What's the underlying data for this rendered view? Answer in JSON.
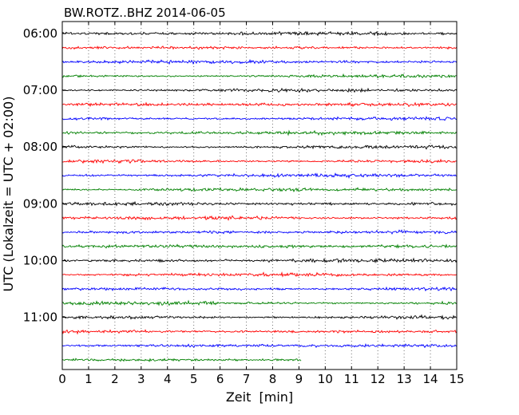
{
  "figure": {
    "title": "BW.ROTZ..BHZ 2014-06-05",
    "xlabel": "Zeit  [min]",
    "ylabel": "UTC (Lokalzeit = UTC + 02:00)"
  },
  "chart_data": {
    "type": "line",
    "subtype": "helicorder-dayplot",
    "title": "BW.ROTZ..BHZ 2014-06-05",
    "xlabel": "Zeit  [min]",
    "ylabel": "UTC (Lokalzeit = UTC + 02:00)",
    "xlim": [
      0,
      15
    ],
    "x_ticks": [
      0,
      1,
      2,
      3,
      4,
      5,
      6,
      7,
      8,
      9,
      10,
      11,
      12,
      13,
      14,
      15
    ],
    "y_ticks": [
      "06:00",
      "07:00",
      "08:00",
      "09:00",
      "10:00",
      "11:00"
    ],
    "grid": "vertical-dotted-every-minute",
    "legend": "none",
    "minutes_per_trace": 15,
    "traces_per_hour": 4,
    "color_cycle": [
      "#000000",
      "#ff0000",
      "#0000ff",
      "#008000"
    ],
    "traces": [
      {
        "start": "06:00",
        "color": "#000000",
        "start_min": 0,
        "end_min": 15
      },
      {
        "start": "06:15",
        "color": "#ff0000",
        "start_min": 0,
        "end_min": 15
      },
      {
        "start": "06:30",
        "color": "#0000ff",
        "start_min": 0,
        "end_min": 15
      },
      {
        "start": "06:45",
        "color": "#008000",
        "start_min": 0,
        "end_min": 15
      },
      {
        "start": "07:00",
        "color": "#000000",
        "start_min": 0,
        "end_min": 15
      },
      {
        "start": "07:15",
        "color": "#ff0000",
        "start_min": 0,
        "end_min": 15
      },
      {
        "start": "07:30",
        "color": "#0000ff",
        "start_min": 0,
        "end_min": 15
      },
      {
        "start": "07:45",
        "color": "#008000",
        "start_min": 0,
        "end_min": 15
      },
      {
        "start": "08:00",
        "color": "#000000",
        "start_min": 0,
        "end_min": 15
      },
      {
        "start": "08:15",
        "color": "#ff0000",
        "start_min": 0,
        "end_min": 15
      },
      {
        "start": "08:30",
        "color": "#0000ff",
        "start_min": 0,
        "end_min": 15
      },
      {
        "start": "08:45",
        "color": "#008000",
        "start_min": 0,
        "end_min": 15
      },
      {
        "start": "09:00",
        "color": "#000000",
        "start_min": 0,
        "end_min": 15
      },
      {
        "start": "09:15",
        "color": "#ff0000",
        "start_min": 0,
        "end_min": 15
      },
      {
        "start": "09:30",
        "color": "#0000ff",
        "start_min": 0,
        "end_min": 15
      },
      {
        "start": "09:45",
        "color": "#008000",
        "start_min": 0,
        "end_min": 15
      },
      {
        "start": "10:00",
        "color": "#000000",
        "start_min": 0,
        "end_min": 15
      },
      {
        "start": "10:15",
        "color": "#ff0000",
        "start_min": 0,
        "end_min": 15
      },
      {
        "start": "10:30",
        "color": "#0000ff",
        "start_min": 0,
        "end_min": 15
      },
      {
        "start": "10:45",
        "color": "#008000",
        "start_min": 0,
        "end_min": 15
      },
      {
        "start": "11:00",
        "color": "#000000",
        "start_min": 0,
        "end_min": 15
      },
      {
        "start": "11:15",
        "color": "#ff0000",
        "start_min": 0,
        "end_min": 15
      },
      {
        "start": "11:30",
        "color": "#0000ff",
        "start_min": 0,
        "end_min": 15
      },
      {
        "start": "11:45",
        "color": "#008000",
        "start_min": 0,
        "end_min": 9.1
      }
    ],
    "amplitude_note": "flat background noise, no visible events"
  }
}
